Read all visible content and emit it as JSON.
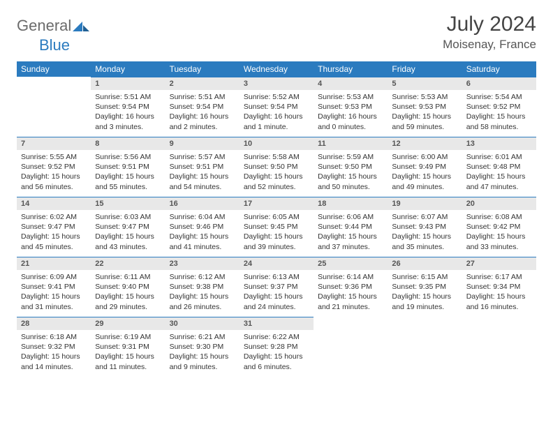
{
  "brand": {
    "part1": "General",
    "part2": "Blue"
  },
  "title": "July 2024",
  "location": "Moisenay, France",
  "colors": {
    "header_bg": "#2b7bbf",
    "header_text": "#ffffff",
    "daynum_bg": "#e8e8e8",
    "border": "#2b7bbf",
    "body_bg": "#ffffff",
    "text": "#333333"
  },
  "weekdays": [
    "Sunday",
    "Monday",
    "Tuesday",
    "Wednesday",
    "Thursday",
    "Friday",
    "Saturday"
  ],
  "weeks": [
    [
      {
        "n": "",
        "sr": "",
        "ss": "",
        "dl": ""
      },
      {
        "n": "1",
        "sr": "Sunrise: 5:51 AM",
        "ss": "Sunset: 9:54 PM",
        "dl": "Daylight: 16 hours and 3 minutes."
      },
      {
        "n": "2",
        "sr": "Sunrise: 5:51 AM",
        "ss": "Sunset: 9:54 PM",
        "dl": "Daylight: 16 hours and 2 minutes."
      },
      {
        "n": "3",
        "sr": "Sunrise: 5:52 AM",
        "ss": "Sunset: 9:54 PM",
        "dl": "Daylight: 16 hours and 1 minute."
      },
      {
        "n": "4",
        "sr": "Sunrise: 5:53 AM",
        "ss": "Sunset: 9:53 PM",
        "dl": "Daylight: 16 hours and 0 minutes."
      },
      {
        "n": "5",
        "sr": "Sunrise: 5:53 AM",
        "ss": "Sunset: 9:53 PM",
        "dl": "Daylight: 15 hours and 59 minutes."
      },
      {
        "n": "6",
        "sr": "Sunrise: 5:54 AM",
        "ss": "Sunset: 9:52 PM",
        "dl": "Daylight: 15 hours and 58 minutes."
      }
    ],
    [
      {
        "n": "7",
        "sr": "Sunrise: 5:55 AM",
        "ss": "Sunset: 9:52 PM",
        "dl": "Daylight: 15 hours and 56 minutes."
      },
      {
        "n": "8",
        "sr": "Sunrise: 5:56 AM",
        "ss": "Sunset: 9:51 PM",
        "dl": "Daylight: 15 hours and 55 minutes."
      },
      {
        "n": "9",
        "sr": "Sunrise: 5:57 AM",
        "ss": "Sunset: 9:51 PM",
        "dl": "Daylight: 15 hours and 54 minutes."
      },
      {
        "n": "10",
        "sr": "Sunrise: 5:58 AM",
        "ss": "Sunset: 9:50 PM",
        "dl": "Daylight: 15 hours and 52 minutes."
      },
      {
        "n": "11",
        "sr": "Sunrise: 5:59 AM",
        "ss": "Sunset: 9:50 PM",
        "dl": "Daylight: 15 hours and 50 minutes."
      },
      {
        "n": "12",
        "sr": "Sunrise: 6:00 AM",
        "ss": "Sunset: 9:49 PM",
        "dl": "Daylight: 15 hours and 49 minutes."
      },
      {
        "n": "13",
        "sr": "Sunrise: 6:01 AM",
        "ss": "Sunset: 9:48 PM",
        "dl": "Daylight: 15 hours and 47 minutes."
      }
    ],
    [
      {
        "n": "14",
        "sr": "Sunrise: 6:02 AM",
        "ss": "Sunset: 9:47 PM",
        "dl": "Daylight: 15 hours and 45 minutes."
      },
      {
        "n": "15",
        "sr": "Sunrise: 6:03 AM",
        "ss": "Sunset: 9:47 PM",
        "dl": "Daylight: 15 hours and 43 minutes."
      },
      {
        "n": "16",
        "sr": "Sunrise: 6:04 AM",
        "ss": "Sunset: 9:46 PM",
        "dl": "Daylight: 15 hours and 41 minutes."
      },
      {
        "n": "17",
        "sr": "Sunrise: 6:05 AM",
        "ss": "Sunset: 9:45 PM",
        "dl": "Daylight: 15 hours and 39 minutes."
      },
      {
        "n": "18",
        "sr": "Sunrise: 6:06 AM",
        "ss": "Sunset: 9:44 PM",
        "dl": "Daylight: 15 hours and 37 minutes."
      },
      {
        "n": "19",
        "sr": "Sunrise: 6:07 AM",
        "ss": "Sunset: 9:43 PM",
        "dl": "Daylight: 15 hours and 35 minutes."
      },
      {
        "n": "20",
        "sr": "Sunrise: 6:08 AM",
        "ss": "Sunset: 9:42 PM",
        "dl": "Daylight: 15 hours and 33 minutes."
      }
    ],
    [
      {
        "n": "21",
        "sr": "Sunrise: 6:09 AM",
        "ss": "Sunset: 9:41 PM",
        "dl": "Daylight: 15 hours and 31 minutes."
      },
      {
        "n": "22",
        "sr": "Sunrise: 6:11 AM",
        "ss": "Sunset: 9:40 PM",
        "dl": "Daylight: 15 hours and 29 minutes."
      },
      {
        "n": "23",
        "sr": "Sunrise: 6:12 AM",
        "ss": "Sunset: 9:38 PM",
        "dl": "Daylight: 15 hours and 26 minutes."
      },
      {
        "n": "24",
        "sr": "Sunrise: 6:13 AM",
        "ss": "Sunset: 9:37 PM",
        "dl": "Daylight: 15 hours and 24 minutes."
      },
      {
        "n": "25",
        "sr": "Sunrise: 6:14 AM",
        "ss": "Sunset: 9:36 PM",
        "dl": "Daylight: 15 hours and 21 minutes."
      },
      {
        "n": "26",
        "sr": "Sunrise: 6:15 AM",
        "ss": "Sunset: 9:35 PM",
        "dl": "Daylight: 15 hours and 19 minutes."
      },
      {
        "n": "27",
        "sr": "Sunrise: 6:17 AM",
        "ss": "Sunset: 9:34 PM",
        "dl": "Daylight: 15 hours and 16 minutes."
      }
    ],
    [
      {
        "n": "28",
        "sr": "Sunrise: 6:18 AM",
        "ss": "Sunset: 9:32 PM",
        "dl": "Daylight: 15 hours and 14 minutes."
      },
      {
        "n": "29",
        "sr": "Sunrise: 6:19 AM",
        "ss": "Sunset: 9:31 PM",
        "dl": "Daylight: 15 hours and 11 minutes."
      },
      {
        "n": "30",
        "sr": "Sunrise: 6:21 AM",
        "ss": "Sunset: 9:30 PM",
        "dl": "Daylight: 15 hours and 9 minutes."
      },
      {
        "n": "31",
        "sr": "Sunrise: 6:22 AM",
        "ss": "Sunset: 9:28 PM",
        "dl": "Daylight: 15 hours and 6 minutes."
      },
      {
        "n": "",
        "sr": "",
        "ss": "",
        "dl": ""
      },
      {
        "n": "",
        "sr": "",
        "ss": "",
        "dl": ""
      },
      {
        "n": "",
        "sr": "",
        "ss": "",
        "dl": ""
      }
    ]
  ]
}
